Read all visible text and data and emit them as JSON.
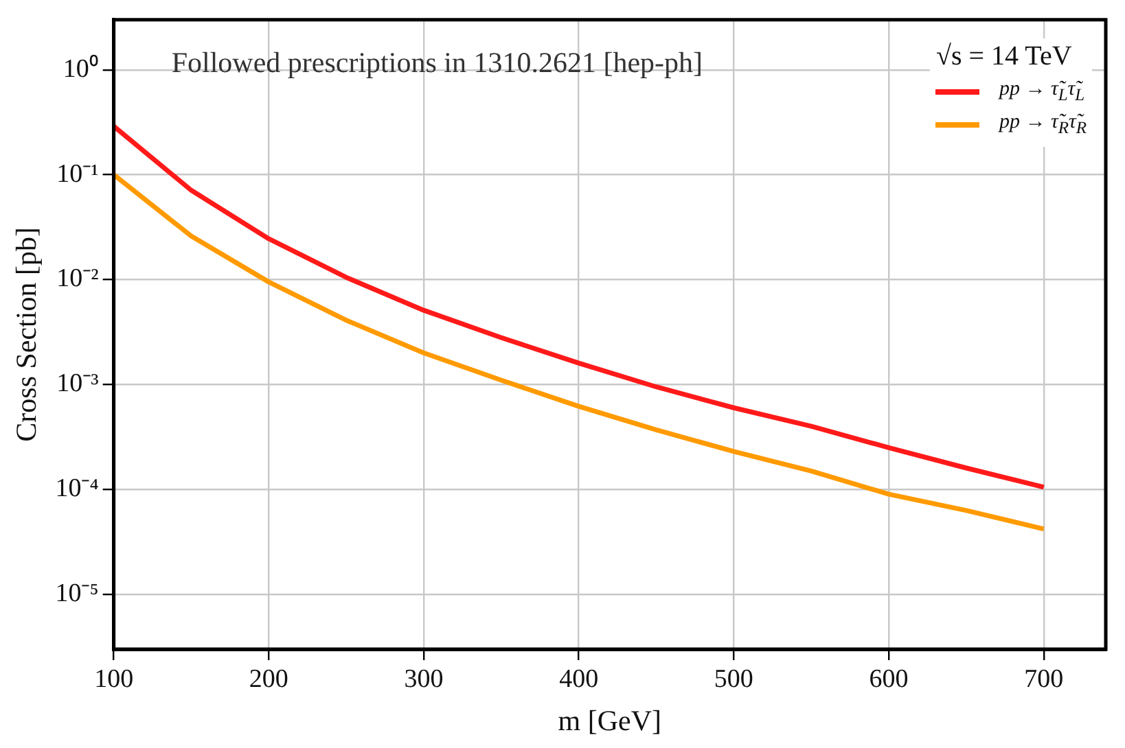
{
  "chart_data": {
    "type": "line",
    "xlabel": "m [GeV]",
    "ylabel": "Cross Section [pb]",
    "legend_title": "√s = 14 TeV",
    "annotations": [
      "Followed prescriptions in 1310.2621 [hep-ph]"
    ],
    "x": [
      100,
      150,
      200,
      250,
      300,
      350,
      400,
      450,
      500,
      550,
      600,
      650,
      700
    ],
    "series": [
      {
        "name": "pp → τ̃$_{L}$τ̃$_{L}$",
        "color": "#ff1a1a",
        "values": [
          0.29,
          0.071,
          0.0245,
          0.0105,
          0.0051,
          0.0028,
          0.0016,
          0.00095,
          0.0006,
          0.0004,
          0.00025,
          0.00016,
          0.000105
        ]
      },
      {
        "name": "pp → τ̃$_{R}$τ̃$_{R}$",
        "color": "#ff9a00",
        "values": [
          0.1,
          0.026,
          0.0095,
          0.0041,
          0.002,
          0.0011,
          0.00062,
          0.00037,
          0.00023,
          0.00015,
          9e-05,
          6.3e-05,
          4.2e-05
        ]
      }
    ],
    "xlim": [
      100,
      740
    ],
    "xticks": [
      100,
      200,
      300,
      400,
      500,
      600,
      700
    ],
    "ylim": [
      3e-06,
      3
    ],
    "yticks": [
      {
        "value": 1,
        "label": "10⁰"
      },
      {
        "value": 0.1,
        "label": "10⁻¹"
      },
      {
        "value": 0.01,
        "label": "10⁻²"
      },
      {
        "value": 0.001,
        "label": "10⁻³"
      },
      {
        "value": 0.0001,
        "label": "10⁻⁴"
      },
      {
        "value": 1e-05,
        "label": "10⁻⁵"
      }
    ],
    "log": "y",
    "grid": true,
    "legend": "top right",
    "marker": "none",
    "line_style": "solid"
  }
}
